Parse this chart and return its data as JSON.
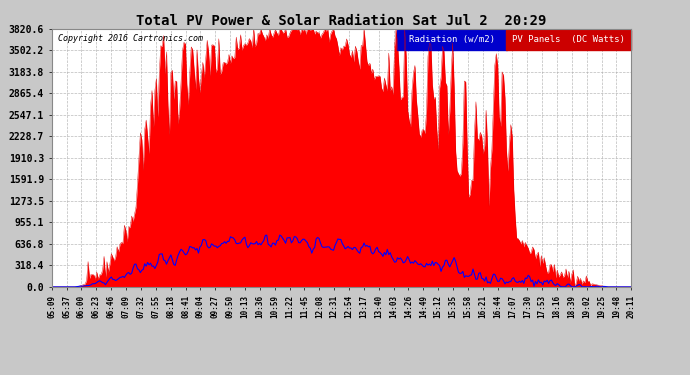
{
  "title": "Total PV Power & Solar Radiation Sat Jul 2  20:29",
  "copyright": "Copyright 2016 Cartronics.com",
  "legend_radiation": "Radiation (w/m2)",
  "legend_pv": "PV Panels  (DC Watts)",
  "yticks": [
    0.0,
    318.4,
    636.8,
    955.1,
    1273.5,
    1591.9,
    1910.3,
    2228.7,
    2547.1,
    2865.4,
    3183.8,
    3502.2,
    3820.6
  ],
  "ymax": 3820.6,
  "ymin": 0.0,
  "background_color": "#c8c8c8",
  "plot_bg_color": "#ffffff",
  "grid_color": "#aaaaaa",
  "radiation_color": "#0000ff",
  "pv_fill_color": "#ff0000",
  "pv_line_color": "#dd0000",
  "xtick_labels": [
    "05:09",
    "05:37",
    "06:00",
    "06:23",
    "06:46",
    "07:09",
    "07:32",
    "07:55",
    "08:18",
    "08:41",
    "09:04",
    "09:27",
    "09:50",
    "10:13",
    "10:36",
    "10:59",
    "11:22",
    "11:45",
    "12:08",
    "12:31",
    "12:54",
    "13:17",
    "13:40",
    "14:03",
    "14:26",
    "14:49",
    "15:12",
    "15:35",
    "15:58",
    "16:21",
    "16:44",
    "17:07",
    "17:30",
    "17:53",
    "18:16",
    "18:39",
    "19:02",
    "19:25",
    "19:48",
    "20:11"
  ],
  "num_points": 400
}
